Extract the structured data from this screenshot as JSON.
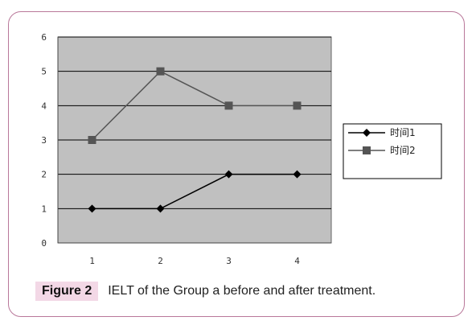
{
  "chart_data": {
    "type": "line",
    "categories": [
      "1",
      "2",
      "3",
      "4"
    ],
    "ylim": [
      0,
      6
    ],
    "yticks": [
      "0",
      "1",
      "2",
      "3",
      "4",
      "5",
      "6"
    ],
    "grid": "horizontal",
    "legend": "right",
    "plot_background": "#c0c0c0",
    "series": [
      {
        "name": "时间1",
        "values": [
          1,
          1,
          2,
          2
        ],
        "marker": "diamond",
        "color": "#000000"
      },
      {
        "name": "时间2",
        "values": [
          3,
          5,
          4,
          4
        ],
        "marker": "square",
        "color": "#555555"
      }
    ]
  },
  "caption": {
    "label": "Figure 2",
    "text": "IELT of the Group a before and after treatment."
  }
}
